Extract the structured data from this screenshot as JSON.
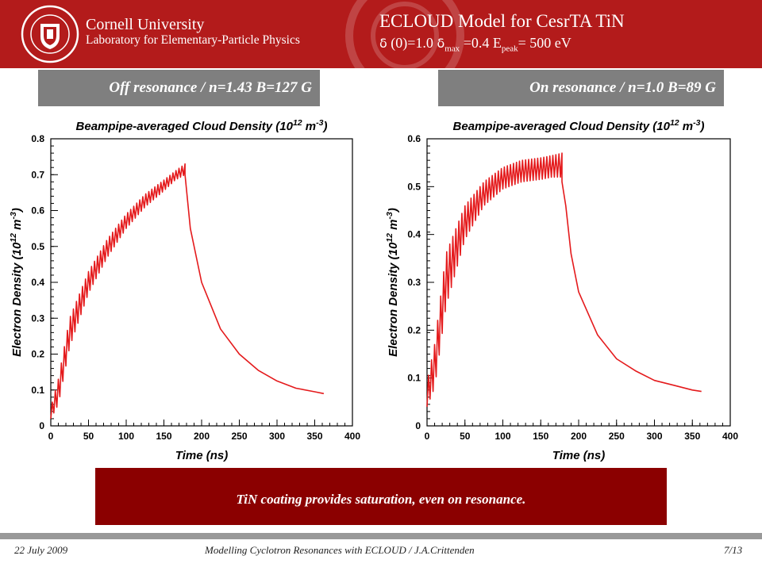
{
  "header": {
    "university": "Cornell University",
    "laboratory": "Laboratory for Elementary-Particle Physics",
    "title": "ECLOUD Model for CesrTA TiN",
    "subtitle": {
      "sym1": "δ",
      "part1": " (0)=1.0   ",
      "sym2": "δ",
      "sub_max": "max",
      "part2": " =0.4   E",
      "sub_peak": "peak",
      "part3": "= 500 eV"
    }
  },
  "panels": {
    "left_label": "Off resonance / n=1.43 B=127 G",
    "right_label": "On resonance / n=1.0 B=89 G"
  },
  "banner": "TiN coating provides saturation, even on resonance.",
  "footer": {
    "date": "22 July 2009",
    "center": "Modelling Cyclotron Resonances with ECLOUD / J.A.Crittenden",
    "page": "7/13"
  },
  "colors": {
    "header": "#b31b1b",
    "banner": "#8b0000",
    "curve": "#e41a1c",
    "label_box": "#7f7f7f"
  },
  "chart_data": [
    {
      "type": "line",
      "title": "Beampipe-averaged Cloud Density (10^12 m^-3)",
      "xlabel": "Time (ns)",
      "ylabel": "Electron Density (10^12 m^-3)",
      "xlim": [
        0,
        400
      ],
      "ylim": [
        0,
        0.8
      ],
      "xticks": [
        "0",
        "50",
        "100",
        "150",
        "200",
        "250",
        "300",
        "350",
        "400"
      ],
      "yticks": [
        "0",
        "0.1",
        "0.2",
        "0.3",
        "0.4",
        "0.5",
        "0.6",
        "0.7",
        "0.8"
      ],
      "series": [
        {
          "envelope_peaks": {
            "x": [
              0,
              10,
              25,
              50,
              75,
              100,
              125,
              150,
              165,
              178
            ],
            "y": [
              0.05,
              0.13,
              0.3,
              0.43,
              0.52,
              0.59,
              0.645,
              0.685,
              0.71,
              0.73
            ]
          },
          "envelope_troughs": {
            "x": [
              0,
              10,
              25,
              50,
              75,
              100,
              125,
              150,
              165,
              178
            ],
            "y": [
              0.02,
              0.06,
              0.22,
              0.37,
              0.47,
              0.55,
              0.61,
              0.655,
              0.685,
              0.7
            ]
          },
          "bunch_spacing_ns": 4,
          "decay": {
            "x": [
              178,
              185,
              200,
              225,
              250,
              275,
              300,
              325,
              350,
              362
            ],
            "y": [
              0.7,
              0.55,
              0.4,
              0.27,
              0.2,
              0.155,
              0.125,
              0.105,
              0.095,
              0.09
            ]
          }
        }
      ]
    },
    {
      "type": "line",
      "title": "Beampipe-averaged Cloud Density (10^12 m^-3)",
      "xlabel": "Time (ns)",
      "ylabel": "Electron Density (10^12 m^-3)",
      "xlim": [
        0,
        400
      ],
      "ylim": [
        0,
        0.6
      ],
      "xticks": [
        "0",
        "50",
        "100",
        "150",
        "200",
        "250",
        "300",
        "350",
        "400"
      ],
      "yticks": [
        "0",
        "0.1",
        "0.2",
        "0.3",
        "0.4",
        "0.5",
        "0.6"
      ],
      "series": [
        {
          "envelope_peaks": {
            "x": [
              0,
              10,
              25,
              50,
              75,
              100,
              125,
              150,
              165,
              178
            ],
            "y": [
              0.09,
              0.17,
              0.36,
              0.46,
              0.51,
              0.54,
              0.555,
              0.56,
              0.565,
              0.57
            ]
          },
          "envelope_troughs": {
            "x": [
              0,
              10,
              25,
              50,
              75,
              100,
              125,
              150,
              165,
              178
            ],
            "y": [
              0.04,
              0.08,
              0.25,
              0.39,
              0.46,
              0.495,
              0.51,
              0.515,
              0.52,
              0.52
            ]
          },
          "bunch_spacing_ns": 4,
          "decay": {
            "x": [
              178,
              183,
              190,
              200,
              225,
              250,
              275,
              300,
              325,
              350,
              362
            ],
            "y": [
              0.51,
              0.46,
              0.36,
              0.28,
              0.19,
              0.14,
              0.115,
              0.095,
              0.085,
              0.075,
              0.072
            ]
          }
        }
      ]
    }
  ]
}
